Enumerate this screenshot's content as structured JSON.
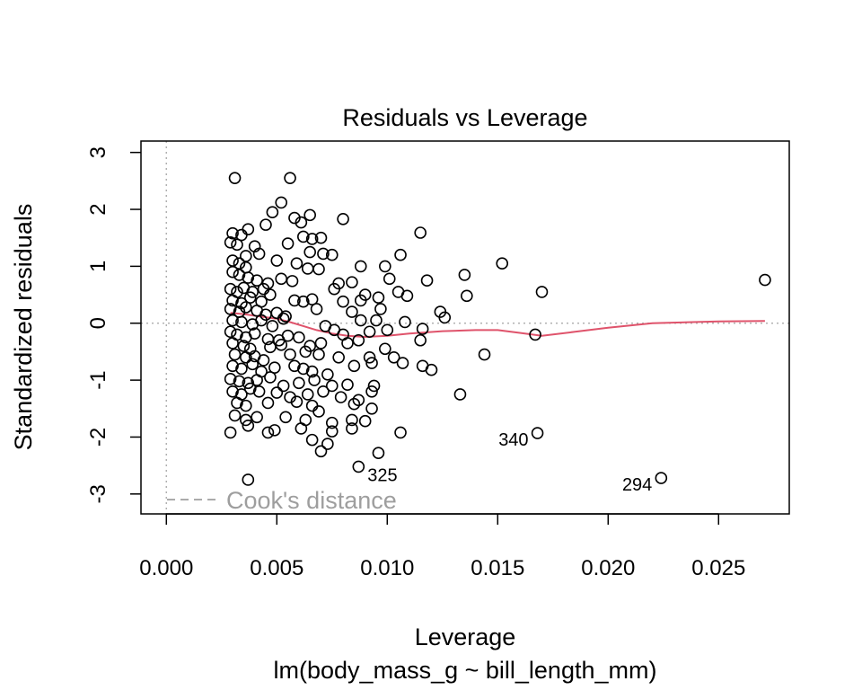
{
  "chart_data": {
    "type": "scatter",
    "title": "Residuals vs Leverage",
    "xlabel": "Leverage",
    "sublabel": "lm(body_mass_g ~ bill_length_mm)",
    "ylabel": "Standardized residuals",
    "xlim": [
      -0.00115,
      0.0282
    ],
    "ylim": [
      -3.35,
      3.2
    ],
    "x_ticks": [
      0.0,
      0.005,
      0.01,
      0.015,
      0.02,
      0.025
    ],
    "x_tick_labels": [
      "0.000",
      "0.005",
      "0.010",
      "0.015",
      "0.020",
      "0.025"
    ],
    "y_ticks": [
      -3,
      -2,
      -1,
      0,
      1,
      2,
      3
    ],
    "y_tick_labels": [
      "-3",
      "-2",
      "-1",
      "0",
      "1",
      "2",
      "3"
    ],
    "reference_lines": {
      "x": 0,
      "y": 0,
      "style": "dotted",
      "color": "#b0b0b0"
    },
    "legend": {
      "label": "Cook's distance",
      "position": "bottom-left",
      "color": "#9e9e9e"
    },
    "smooth_color": "#df536b",
    "points": [
      [
        0.0031,
        2.55
      ],
      [
        0.0056,
        2.55
      ],
      [
        0.0052,
        2.12
      ],
      [
        0.0048,
        1.95
      ],
      [
        0.0058,
        1.85
      ],
      [
        0.008,
        1.83
      ],
      [
        0.0065,
        1.9
      ],
      [
        0.0061,
        1.77
      ],
      [
        0.0045,
        1.73
      ],
      [
        0.0037,
        1.65
      ],
      [
        0.003,
        1.58
      ],
      [
        0.0034,
        1.55
      ],
      [
        0.0062,
        1.52
      ],
      [
        0.0066,
        1.48
      ],
      [
        0.007,
        1.5
      ],
      [
        0.0115,
        1.59
      ],
      [
        0.0029,
        1.42
      ],
      [
        0.0032,
        1.38
      ],
      [
        0.004,
        1.35
      ],
      [
        0.0055,
        1.4
      ],
      [
        0.0065,
        1.25
      ],
      [
        0.0071,
        1.22
      ],
      [
        0.0075,
        1.2
      ],
      [
        0.0042,
        1.22
      ],
      [
        0.0036,
        1.18
      ],
      [
        0.003,
        1.1
      ],
      [
        0.0033,
        1.05
      ],
      [
        0.0036,
        0.98
      ],
      [
        0.005,
        1.1
      ],
      [
        0.0059,
        1.05
      ],
      [
        0.0064,
        0.96
      ],
      [
        0.0069,
        0.95
      ],
      [
        0.0088,
        1.0
      ],
      [
        0.0099,
        1.0
      ],
      [
        0.0106,
        1.2
      ],
      [
        0.0152,
        1.05
      ],
      [
        0.0135,
        0.85
      ],
      [
        0.003,
        0.9
      ],
      [
        0.0033,
        0.85
      ],
      [
        0.0037,
        0.8
      ],
      [
        0.0041,
        0.75
      ],
      [
        0.0046,
        0.7
      ],
      [
        0.0052,
        0.78
      ],
      [
        0.0057,
        0.74
      ],
      [
        0.0078,
        0.7
      ],
      [
        0.0084,
        0.72
      ],
      [
        0.0101,
        0.78
      ],
      [
        0.0118,
        0.75
      ],
      [
        0.0029,
        0.6
      ],
      [
        0.0032,
        0.55
      ],
      [
        0.0035,
        0.62
      ],
      [
        0.0039,
        0.55
      ],
      [
        0.0044,
        0.6
      ],
      [
        0.0047,
        0.5
      ],
      [
        0.0076,
        0.6
      ],
      [
        0.009,
        0.5
      ],
      [
        0.0105,
        0.55
      ],
      [
        0.017,
        0.55
      ],
      [
        0.0136,
        0.48
      ],
      [
        0.003,
        0.4
      ],
      [
        0.0034,
        0.35
      ],
      [
        0.0038,
        0.45
      ],
      [
        0.0043,
        0.38
      ],
      [
        0.0058,
        0.4
      ],
      [
        0.0062,
        0.38
      ],
      [
        0.0066,
        0.42
      ],
      [
        0.008,
        0.38
      ],
      [
        0.0088,
        0.4
      ],
      [
        0.0096,
        0.45
      ],
      [
        0.0109,
        0.48
      ],
      [
        0.0271,
        0.76
      ],
      [
        0.0029,
        0.25
      ],
      [
        0.0033,
        0.2
      ],
      [
        0.0036,
        0.28
      ],
      [
        0.0041,
        0.22
      ],
      [
        0.0045,
        0.15
      ],
      [
        0.005,
        0.18
      ],
      [
        0.0054,
        0.12
      ],
      [
        0.0068,
        0.25
      ],
      [
        0.0084,
        0.2
      ],
      [
        0.0097,
        0.25
      ],
      [
        0.0124,
        0.2
      ],
      [
        0.0126,
        0.1
      ],
      [
        0.003,
        0.05
      ],
      [
        0.0034,
        0.02
      ],
      [
        0.0039,
        -0.02
      ],
      [
        0.0043,
        0.05
      ],
      [
        0.0048,
        -0.05
      ],
      [
        0.0053,
        0.08
      ],
      [
        0.0072,
        -0.05
      ],
      [
        0.0088,
        0.05
      ],
      [
        0.0095,
        0.05
      ],
      [
        0.0108,
        0.02
      ],
      [
        0.0029,
        -0.15
      ],
      [
        0.0032,
        -0.2
      ],
      [
        0.0036,
        -0.25
      ],
      [
        0.004,
        -0.18
      ],
      [
        0.0046,
        -0.28
      ],
      [
        0.0051,
        -0.3
      ],
      [
        0.0055,
        -0.22
      ],
      [
        0.006,
        -0.25
      ],
      [
        0.0076,
        -0.12
      ],
      [
        0.008,
        -0.2
      ],
      [
        0.0092,
        -0.15
      ],
      [
        0.01,
        -0.12
      ],
      [
        0.0116,
        -0.1
      ],
      [
        0.0167,
        -0.2
      ],
      [
        0.003,
        -0.35
      ],
      [
        0.0035,
        -0.4
      ],
      [
        0.0038,
        -0.45
      ],
      [
        0.0047,
        -0.42
      ],
      [
        0.0052,
        -0.38
      ],
      [
        0.0065,
        -0.4
      ],
      [
        0.007,
        -0.35
      ],
      [
        0.0082,
        -0.35
      ],
      [
        0.0087,
        -0.3
      ],
      [
        0.0099,
        -0.45
      ],
      [
        0.0115,
        -0.3
      ],
      [
        0.0031,
        -0.55
      ],
      [
        0.0036,
        -0.6
      ],
      [
        0.004,
        -0.58
      ],
      [
        0.0044,
        -0.65
      ],
      [
        0.0056,
        -0.55
      ],
      [
        0.0063,
        -0.5
      ],
      [
        0.0069,
        -0.55
      ],
      [
        0.0078,
        -0.6
      ],
      [
        0.0092,
        -0.6
      ],
      [
        0.0103,
        -0.6
      ],
      [
        0.0107,
        -0.7
      ],
      [
        0.0144,
        -0.55
      ],
      [
        0.003,
        -0.75
      ],
      [
        0.0034,
        -0.8
      ],
      [
        0.0039,
        -0.72
      ],
      [
        0.0043,
        -0.85
      ],
      [
        0.0049,
        -0.78
      ],
      [
        0.0058,
        -0.75
      ],
      [
        0.0062,
        -0.8
      ],
      [
        0.0066,
        -0.85
      ],
      [
        0.0073,
        -0.9
      ],
      [
        0.0085,
        -0.75
      ],
      [
        0.0093,
        -0.7
      ],
      [
        0.0116,
        -0.75
      ],
      [
        0.012,
        -0.82
      ],
      [
        0.0029,
        -0.98
      ],
      [
        0.0033,
        -1.02
      ],
      [
        0.0037,
        -1.05
      ],
      [
        0.0041,
        -1.0
      ],
      [
        0.0047,
        -0.95
      ],
      [
        0.0053,
        -1.1
      ],
      [
        0.006,
        -1.05
      ],
      [
        0.0067,
        -1.0
      ],
      [
        0.0075,
        -1.1
      ],
      [
        0.0082,
        -1.08
      ],
      [
        0.0094,
        -1.1
      ],
      [
        0.003,
        -1.2
      ],
      [
        0.0034,
        -1.25
      ],
      [
        0.0038,
        -1.15
      ],
      [
        0.0042,
        -1.2
      ],
      [
        0.005,
        -1.22
      ],
      [
        0.0056,
        -1.3
      ],
      [
        0.0064,
        -1.25
      ],
      [
        0.0071,
        -1.2
      ],
      [
        0.0079,
        -1.3
      ],
      [
        0.0087,
        -1.35
      ],
      [
        0.0093,
        -1.2
      ],
      [
        0.0133,
        -1.25
      ],
      [
        0.0032,
        -1.4
      ],
      [
        0.0036,
        -1.45
      ],
      [
        0.0046,
        -1.4
      ],
      [
        0.0059,
        -1.38
      ],
      [
        0.0066,
        -1.45
      ],
      [
        0.0085,
        -1.42
      ],
      [
        0.0093,
        -1.5
      ],
      [
        0.0031,
        -1.62
      ],
      [
        0.0036,
        -1.7
      ],
      [
        0.0041,
        -1.65
      ],
      [
        0.0054,
        -1.65
      ],
      [
        0.0063,
        -1.7
      ],
      [
        0.0069,
        -1.55
      ],
      [
        0.0075,
        -1.75
      ],
      [
        0.0084,
        -1.7
      ],
      [
        0.009,
        -1.72
      ],
      [
        0.0029,
        -1.92
      ],
      [
        0.0037,
        -1.8
      ],
      [
        0.0046,
        -1.92
      ],
      [
        0.0049,
        -1.88
      ],
      [
        0.0061,
        -1.85
      ],
      [
        0.0075,
        -1.9
      ],
      [
        0.0084,
        -1.85
      ],
      [
        0.0106,
        -1.92
      ],
      [
        0.0168,
        -1.93
      ],
      [
        0.0066,
        -2.05
      ],
      [
        0.007,
        -2.25
      ],
      [
        0.0073,
        -2.12
      ],
      [
        0.0096,
        -2.28
      ],
      [
        0.0087,
        -2.52
      ],
      [
        0.0037,
        -2.75
      ],
      [
        0.0224,
        -2.72
      ]
    ],
    "point_labels": [
      {
        "label": "340",
        "x": 0.0168,
        "y": -1.93,
        "dx": -1.0
      },
      {
        "label": "325",
        "x": 0.0087,
        "y": -2.52,
        "dx": 1.0
      },
      {
        "label": "294",
        "x": 0.0224,
        "y": -2.72,
        "dx": -1.0
      }
    ],
    "smooth": [
      [
        0.0029,
        0.18
      ],
      [
        0.0035,
        0.16
      ],
      [
        0.0042,
        0.12
      ],
      [
        0.005,
        0.08
      ],
      [
        0.0056,
        0.02
      ],
      [
        0.0062,
        -0.05
      ],
      [
        0.0068,
        -0.12
      ],
      [
        0.0075,
        -0.18
      ],
      [
        0.0082,
        -0.22
      ],
      [
        0.009,
        -0.24
      ],
      [
        0.01,
        -0.22
      ],
      [
        0.011,
        -0.18
      ],
      [
        0.0125,
        -0.14
      ],
      [
        0.014,
        -0.12
      ],
      [
        0.015,
        -0.12
      ],
      [
        0.016,
        -0.17
      ],
      [
        0.017,
        -0.22
      ],
      [
        0.0185,
        -0.15
      ],
      [
        0.02,
        -0.08
      ],
      [
        0.022,
        0.0
      ],
      [
        0.025,
        0.03
      ],
      [
        0.0271,
        0.04
      ]
    ]
  }
}
